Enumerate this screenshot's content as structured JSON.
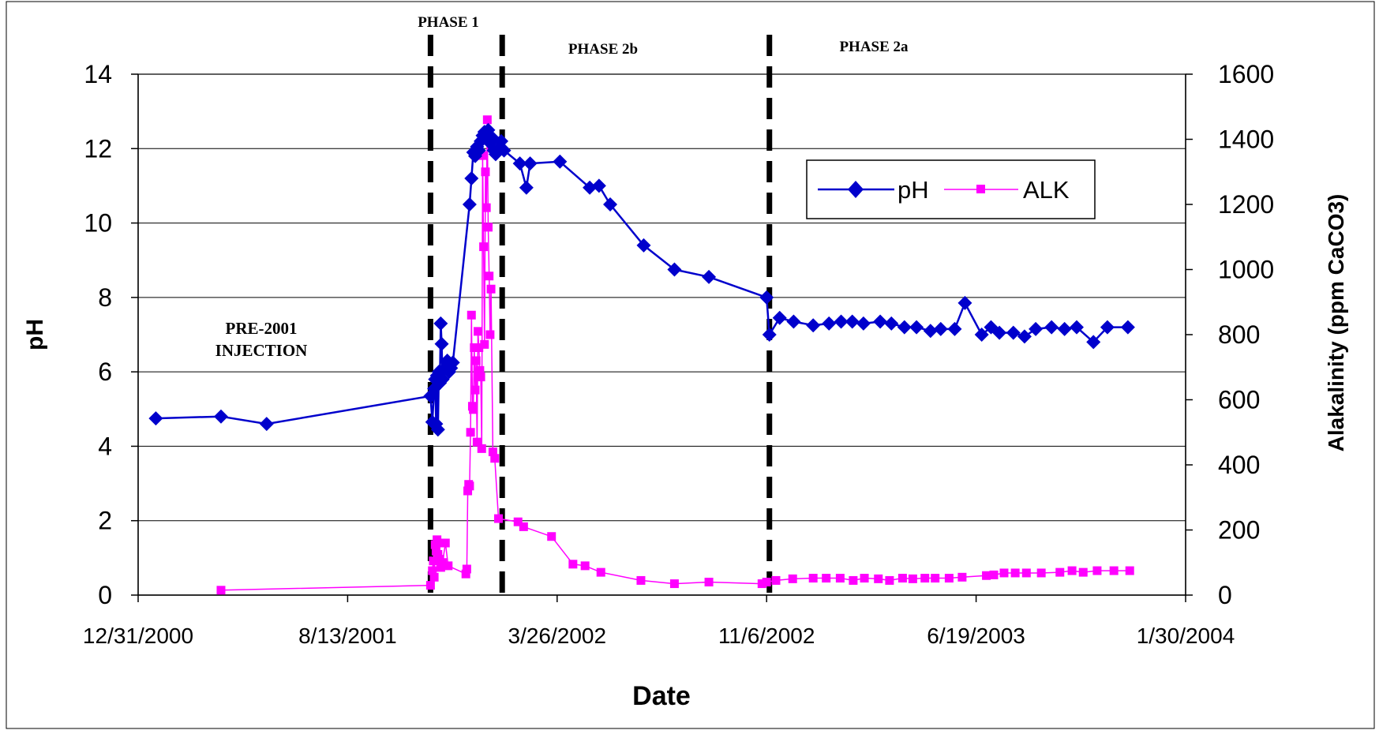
{
  "chart_data": {
    "type": "line",
    "xlabel": "Date",
    "ylabel_left": "pH",
    "ylabel_right": "Alakalinity (ppm CaCO3)",
    "x_axis": {
      "min": "2000-12-31",
      "max": "2004-01-30",
      "ticks": [
        "2000-12-31",
        "2001-08-13",
        "2002-03-26",
        "2002-11-06",
        "2003-06-19",
        "2004-01-30"
      ],
      "tick_labels": [
        "12/31/2000",
        "8/13/2001",
        "3/26/2002",
        "11/6/2002",
        "6/19/2003",
        "1/30/2004"
      ]
    },
    "y_left": {
      "min": 0,
      "max": 14,
      "ticks": [
        0,
        2,
        4,
        6,
        8,
        10,
        12,
        14
      ],
      "tick_labels": [
        "0",
        "2",
        "4",
        "6",
        "8",
        "10",
        "12",
        "14"
      ]
    },
    "y_right": {
      "min": 0,
      "max": 1600,
      "ticks": [
        0,
        200,
        400,
        600,
        800,
        1000,
        1200,
        1400,
        1600
      ],
      "tick_labels": [
        "0",
        "200",
        "400",
        "600",
        "800",
        "1000",
        "1200",
        "1400",
        "1600"
      ]
    },
    "grid": "horizontal",
    "legend_position": "right",
    "series": [
      {
        "name": "pH",
        "axis": "left",
        "color": "#0000cc",
        "marker": "diamond",
        "points": [
          [
            "2001-01-19",
            4.75
          ],
          [
            "2001-03-30",
            4.8
          ],
          [
            "2001-05-18",
            4.6
          ],
          [
            "2001-11-10",
            5.35
          ],
          [
            "2001-11-12",
            4.65
          ],
          [
            "2001-11-14",
            5.55
          ],
          [
            "2001-11-15",
            5.8
          ],
          [
            "2001-11-16",
            4.6
          ],
          [
            "2001-11-17",
            5.9
          ],
          [
            "2001-11-18",
            4.45
          ],
          [
            "2001-11-19",
            6.0
          ],
          [
            "2001-11-20",
            5.7
          ],
          [
            "2001-11-21",
            7.3
          ],
          [
            "2001-11-22",
            6.75
          ],
          [
            "2001-11-23",
            5.8
          ],
          [
            "2001-11-24",
            6.05
          ],
          [
            "2001-11-26",
            6.1
          ],
          [
            "2001-11-28",
            6.3
          ],
          [
            "2001-11-30",
            6.0
          ],
          [
            "2001-12-02",
            6.1
          ],
          [
            "2001-12-04",
            6.25
          ],
          [
            "2001-12-22",
            10.5
          ],
          [
            "2001-12-24",
            11.2
          ],
          [
            "2001-12-26",
            11.9
          ],
          [
            "2001-12-28",
            11.8
          ],
          [
            "2001-12-30",
            12.05
          ],
          [
            "2002-01-01",
            11.95
          ],
          [
            "2002-01-03",
            12.2
          ],
          [
            "2002-01-05",
            12.35
          ],
          [
            "2002-01-07",
            12.45
          ],
          [
            "2002-01-09",
            12.3
          ],
          [
            "2002-01-11",
            12.5
          ],
          [
            "2002-01-13",
            12.15
          ],
          [
            "2002-01-15",
            12.3
          ],
          [
            "2002-01-17",
            11.95
          ],
          [
            "2002-01-19",
            11.85
          ],
          [
            "2002-01-22",
            12.0
          ],
          [
            "2002-01-25",
            12.2
          ],
          [
            "2002-01-28",
            11.95
          ],
          [
            "2002-02-14",
            11.6
          ],
          [
            "2002-02-21",
            10.95
          ],
          [
            "2002-02-25",
            11.6
          ],
          [
            "2002-03-29",
            11.65
          ],
          [
            "2002-04-30",
            10.95
          ],
          [
            "2002-05-10",
            11.0
          ],
          [
            "2002-05-22",
            10.5
          ],
          [
            "2002-06-27",
            9.4
          ],
          [
            "2002-07-30",
            8.75
          ],
          [
            "2002-09-05",
            8.55
          ],
          [
            "2002-11-06",
            8.0
          ],
          [
            "2002-11-09",
            7.0
          ],
          [
            "2002-11-20",
            7.45
          ],
          [
            "2002-12-05",
            7.35
          ],
          [
            "2002-12-26",
            7.25
          ],
          [
            "2003-01-12",
            7.3
          ],
          [
            "2003-01-25",
            7.35
          ],
          [
            "2003-02-06",
            7.35
          ],
          [
            "2003-02-18",
            7.3
          ],
          [
            "2003-03-08",
            7.35
          ],
          [
            "2003-03-20",
            7.3
          ],
          [
            "2003-04-03",
            7.2
          ],
          [
            "2003-04-16",
            7.2
          ],
          [
            "2003-05-01",
            7.1
          ],
          [
            "2003-05-12",
            7.15
          ],
          [
            "2003-05-27",
            7.15
          ],
          [
            "2003-06-07",
            7.85
          ],
          [
            "2003-06-25",
            7.0
          ],
          [
            "2003-07-05",
            7.2
          ],
          [
            "2003-07-14",
            7.05
          ],
          [
            "2003-07-29",
            7.05
          ],
          [
            "2003-08-10",
            6.95
          ],
          [
            "2003-08-22",
            7.15
          ],
          [
            "2003-09-08",
            7.2
          ],
          [
            "2003-09-22",
            7.15
          ],
          [
            "2003-10-05",
            7.2
          ],
          [
            "2003-10-23",
            6.8
          ],
          [
            "2003-11-07",
            7.2
          ],
          [
            "2003-11-29",
            7.2
          ]
        ]
      },
      {
        "name": "ALK",
        "axis": "right",
        "color": "#ff00ff",
        "marker": "square",
        "points": [
          [
            "2001-03-30",
            15
          ],
          [
            "2001-11-10",
            30
          ],
          [
            "2001-11-12",
            75
          ],
          [
            "2001-11-13",
            105
          ],
          [
            "2001-11-14",
            55
          ],
          [
            "2001-11-15",
            155
          ],
          [
            "2001-11-16",
            135
          ],
          [
            "2001-11-17",
            170
          ],
          [
            "2001-11-18",
            125
          ],
          [
            "2001-11-19",
            160
          ],
          [
            "2001-11-20",
            110
          ],
          [
            "2001-11-21",
            85
          ],
          [
            "2001-11-23",
            100
          ],
          [
            "2001-11-26",
            160
          ],
          [
            "2001-11-29",
            90
          ],
          [
            "2001-12-18",
            65
          ],
          [
            "2001-12-19",
            80
          ],
          [
            "2001-12-20",
            320
          ],
          [
            "2001-12-21",
            340
          ],
          [
            "2001-12-22",
            335
          ],
          [
            "2001-12-23",
            500
          ],
          [
            "2001-12-24",
            860
          ],
          [
            "2001-12-25",
            580
          ],
          [
            "2001-12-26",
            570
          ],
          [
            "2001-12-27",
            760
          ],
          [
            "2001-12-28",
            630
          ],
          [
            "2001-12-29",
            720
          ],
          [
            "2001-12-30",
            470
          ],
          [
            "2001-12-31",
            810
          ],
          [
            "2002-01-01",
            760
          ],
          [
            "2002-01-02",
            690
          ],
          [
            "2002-01-03",
            670
          ],
          [
            "2002-01-04",
            450
          ],
          [
            "2002-01-05",
            1350
          ],
          [
            "2002-01-06",
            1070
          ],
          [
            "2002-01-07",
            770
          ],
          [
            "2002-01-08",
            1300
          ],
          [
            "2002-01-09",
            1190
          ],
          [
            "2002-01-10",
            1460
          ],
          [
            "2002-01-11",
            1130
          ],
          [
            "2002-01-12",
            980
          ],
          [
            "2002-01-13",
            800
          ],
          [
            "2002-01-14",
            940
          ],
          [
            "2002-01-16",
            440
          ],
          [
            "2002-01-18",
            420
          ],
          [
            "2002-01-22",
            235
          ],
          [
            "2002-02-12",
            225
          ],
          [
            "2002-02-18",
            210
          ],
          [
            "2002-03-20",
            180
          ],
          [
            "2002-04-12",
            95
          ],
          [
            "2002-04-25",
            90
          ],
          [
            "2002-05-12",
            70
          ],
          [
            "2002-06-24",
            45
          ],
          [
            "2002-07-30",
            35
          ],
          [
            "2002-09-05",
            40
          ],
          [
            "2002-11-01",
            35
          ],
          [
            "2002-11-06",
            40
          ],
          [
            "2002-11-16",
            45
          ],
          [
            "2002-12-04",
            50
          ],
          [
            "2002-12-26",
            52
          ],
          [
            "2003-01-09",
            52
          ],
          [
            "2003-01-24",
            52
          ],
          [
            "2003-02-07",
            45
          ],
          [
            "2003-02-19",
            52
          ],
          [
            "2003-03-06",
            50
          ],
          [
            "2003-03-18",
            45
          ],
          [
            "2003-04-01",
            52
          ],
          [
            "2003-04-12",
            50
          ],
          [
            "2003-04-25",
            52
          ],
          [
            "2003-05-06",
            52
          ],
          [
            "2003-05-21",
            52
          ],
          [
            "2003-06-04",
            55
          ],
          [
            "2003-06-30",
            60
          ],
          [
            "2003-07-08",
            62
          ],
          [
            "2003-07-19",
            68
          ],
          [
            "2003-07-31",
            68
          ],
          [
            "2003-08-12",
            68
          ],
          [
            "2003-08-28",
            68
          ],
          [
            "2003-09-17",
            70
          ],
          [
            "2003-09-30",
            75
          ],
          [
            "2003-10-12",
            70
          ],
          [
            "2003-10-27",
            75
          ],
          [
            "2003-11-14",
            75
          ],
          [
            "2003-12-01",
            75
          ]
        ]
      }
    ],
    "phase_lines": [
      {
        "date": "2001-11-10"
      },
      {
        "date": "2002-01-26"
      },
      {
        "date": "2002-11-09"
      }
    ],
    "annotations": [
      {
        "text": "PHASE 1"
      },
      {
        "text": "PHASE 2b"
      },
      {
        "text": "PHASE 2a"
      },
      {
        "text": "PRE-2001"
      },
      {
        "text": "INJECTION"
      }
    ]
  }
}
